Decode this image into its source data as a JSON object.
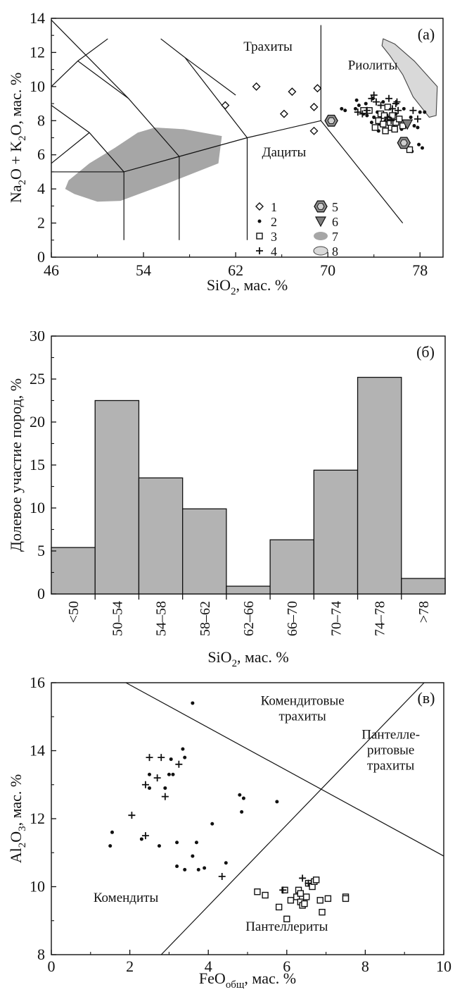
{
  "chart_data": [
    {
      "type": "scatter",
      "panel_label": "(а)",
      "xlabel": {
        "main": "SiO",
        "sub": "2",
        "rest": ", мас. %"
      },
      "ylabel": {
        "parts": [
          [
            "Na",
            ""
          ],
          [
            "2",
            "sub"
          ],
          [
            "O + K",
            ""
          ],
          [
            "2",
            "sub"
          ],
          [
            "O, мас. %",
            ""
          ]
        ]
      },
      "xlim": [
        46,
        80
      ],
      "ylim": [
        0,
        14
      ],
      "xticks": [
        46,
        54,
        62,
        70,
        78
      ],
      "yticks": [
        0,
        2,
        4,
        6,
        8,
        10,
        12,
        14
      ],
      "field_labels": [
        {
          "text": "Трахиты",
          "x": 64.8,
          "y": 12.1
        },
        {
          "text": "Риолиты",
          "x": 73.9,
          "y": 11.0
        },
        {
          "text": "Дациты",
          "x": 66.2,
          "y": 5.9
        }
      ],
      "boundaries": [
        [
          [
            46,
            5
          ],
          [
            52.3,
            5
          ],
          [
            57.1,
            5.9
          ],
          [
            63,
            7
          ],
          [
            69.4,
            8
          ]
        ],
        [
          [
            52.3,
            1
          ],
          [
            52.3,
            5
          ]
        ],
        [
          [
            57.1,
            1
          ],
          [
            57.1,
            5.9
          ]
        ],
        [
          [
            63,
            1
          ],
          [
            63,
            7
          ]
        ],
        [
          [
            69.4,
            8
          ],
          [
            76.5,
            2
          ]
        ],
        [
          [
            69.4,
            8
          ],
          [
            69.4,
            13.6
          ]
        ],
        [
          [
            63,
            7
          ],
          [
            57.6,
            11.7
          ],
          [
            55.5,
            12.8
          ]
        ],
        [
          [
            57.1,
            5.9
          ],
          [
            52.7,
            9.3
          ],
          [
            48.3,
            11.5
          ],
          [
            46,
            10
          ]
        ],
        [
          [
            52.3,
            5
          ],
          [
            49.3,
            7.3
          ],
          [
            46,
            8.9
          ]
        ],
        [
          [
            46,
            5.5
          ],
          [
            49.3,
            7.3
          ]
        ],
        [
          [
            52.7,
            9.3
          ],
          [
            46,
            13.9
          ]
        ],
        [
          [
            48.3,
            11.5
          ],
          [
            50.9,
            12.8
          ]
        ],
        [
          [
            57.6,
            11.7
          ],
          [
            62,
            9.5
          ]
        ]
      ],
      "areas": [
        {
          "name": "7",
          "fill": "#a6a6a6",
          "stroke": "none",
          "points": [
            [
              47.5,
              4.5
            ],
            [
              49.3,
              5.5
            ],
            [
              51.5,
              6.4
            ],
            [
              53.5,
              7.3
            ],
            [
              55,
              7.6
            ],
            [
              57.5,
              7.5
            ],
            [
              60.8,
              7.1
            ],
            [
              60.5,
              5.5
            ],
            [
              56,
              4.3
            ],
            [
              52,
              3.3
            ],
            [
              50,
              3.25
            ],
            [
              48,
              3.7
            ],
            [
              47.2,
              4.0
            ]
          ]
        },
        {
          "name": "8",
          "fill": "#d9d9d9",
          "stroke": "#444444",
          "points": [
            [
              74.8,
              12.8
            ],
            [
              75.8,
              12.5
            ],
            [
              77.5,
              11.5
            ],
            [
              79.5,
              10.0
            ],
            [
              79.4,
              8.3
            ],
            [
              78.8,
              8.2
            ],
            [
              77.4,
              9.4
            ],
            [
              76.5,
              10.7
            ],
            [
              75.4,
              11.8
            ],
            [
              74.7,
              12.4
            ]
          ]
        }
      ],
      "series": [
        {
          "name": "1",
          "marker": "diamond",
          "points": [
            [
              61.1,
              8.9
            ],
            [
              63.8,
              10.0
            ],
            [
              66.2,
              8.4
            ],
            [
              66.9,
              9.7
            ],
            [
              68.8,
              7.4
            ],
            [
              68.8,
              8.8
            ],
            [
              69.1,
              9.9
            ]
          ]
        },
        {
          "name": "2",
          "marker": "dot",
          "points": [
            [
              71.2,
              8.7
            ],
            [
              71.5,
              8.6
            ],
            [
              72.4,
              8.7
            ],
            [
              72.5,
              9.2
            ],
            [
              72.7,
              8.9
            ],
            [
              73.1,
              8.4
            ],
            [
              73.3,
              9.0
            ],
            [
              73.4,
              8.3
            ],
            [
              73.6,
              8.5
            ],
            [
              73.9,
              9.3
            ],
            [
              74.0,
              8.2
            ],
            [
              74.3,
              8.5
            ],
            [
              74.5,
              7.8
            ],
            [
              74.7,
              8.2
            ],
            [
              74.8,
              9.1
            ],
            [
              75.0,
              8.0
            ],
            [
              75.3,
              8.7
            ],
            [
              75.5,
              8.3
            ],
            [
              75.7,
              7.6
            ],
            [
              75.9,
              8.4
            ],
            [
              76.2,
              8.0
            ],
            [
              76.4,
              7.5
            ],
            [
              76.6,
              8.7
            ],
            [
              76.9,
              7.9
            ],
            [
              77.2,
              8.2
            ],
            [
              77.5,
              7.7
            ],
            [
              77.8,
              7.6
            ],
            [
              78.0,
              8.5
            ],
            [
              78.2,
              6.4
            ],
            [
              77.9,
              6.6
            ],
            [
              77.3,
              6.2
            ],
            [
              76.8,
              6.8
            ],
            [
              78.4,
              8.5
            ],
            [
              74.4,
              7.4
            ],
            [
              73.8,
              7.9
            ]
          ]
        },
        {
          "name": "3",
          "marker": "square",
          "points": [
            [
              73.1,
              8.6
            ],
            [
              73.6,
              8.6
            ],
            [
              74.1,
              7.6
            ],
            [
              74.4,
              8.0
            ],
            [
              74.6,
              8.4
            ],
            [
              74.8,
              7.8
            ],
            [
              75.0,
              7.4
            ],
            [
              75.3,
              8.1
            ],
            [
              75.5,
              7.6
            ],
            [
              75.8,
              7.5
            ],
            [
              75.6,
              8.3
            ],
            [
              75.2,
              8.8
            ],
            [
              75.9,
              7.9
            ],
            [
              76.2,
              8.1
            ],
            [
              76.5,
              7.7
            ],
            [
              77.1,
              6.3
            ],
            [
              74.9,
              8.3
            ],
            [
              75.4,
              7.9
            ]
          ]
        },
        {
          "name": "4",
          "marker": "plus",
          "points": [
            [
              72.6,
              8.5
            ],
            [
              73.0,
              8.4
            ],
            [
              73.4,
              8.6
            ],
            [
              73.8,
              9.3
            ],
            [
              74.0,
              9.5
            ],
            [
              74.2,
              9.1
            ],
            [
              74.6,
              8.9
            ],
            [
              75.2,
              8.2
            ],
            [
              75.3,
              9.3
            ],
            [
              75.6,
              8.7
            ],
            [
              75.9,
              9.0
            ],
            [
              76.0,
              9.1
            ],
            [
              77.4,
              8.6
            ],
            [
              77.8,
              8.1
            ],
            [
              75.5,
              8.0
            ],
            [
              76.1,
              8.6
            ]
          ]
        },
        {
          "name": "5",
          "marker": "hexagon",
          "points": [
            [
              70.3,
              8.0
            ],
            [
              76.6,
              6.7
            ]
          ]
        },
        {
          "name": "6",
          "marker": "triangle-down",
          "points": [
            [
              76.9,
              7.8
            ]
          ]
        }
      ],
      "legend": {
        "placement": "bottom-center",
        "entries": [
          {
            "label": "1",
            "marker": "diamond"
          },
          {
            "label": "2",
            "marker": "dot"
          },
          {
            "label": "3",
            "marker": "square"
          },
          {
            "label": "4",
            "marker": "plus"
          },
          {
            "label": "5",
            "marker": "hexagon"
          },
          {
            "label": "6",
            "marker": "triangle-down"
          },
          {
            "label": "7",
            "marker": "area-dark"
          },
          {
            "label": "8",
            "marker": "area-light"
          }
        ]
      }
    },
    {
      "type": "bar",
      "panel_label": "(б)",
      "categories": [
        "<50",
        "50–54",
        "54–58",
        "58–62",
        "62–66",
        "66–70",
        "70–74",
        "74–78",
        ">78"
      ],
      "values": [
        5.4,
        22.5,
        13.5,
        9.9,
        0.9,
        6.3,
        14.4,
        25.2,
        1.8
      ],
      "bar_color": "#b3b3b3",
      "xlabel": {
        "main": "SiO",
        "sub": "2",
        "rest": ", мас. %"
      },
      "ylabel": "Долевое участие пород, %",
      "ylim": [
        0,
        30
      ],
      "yticks": [
        0,
        5,
        10,
        15,
        20,
        25,
        30
      ]
    },
    {
      "type": "scatter",
      "panel_label": "(в)",
      "xlabel": {
        "main": "FeO",
        "sub": "общ",
        "rest": ", мас. %"
      },
      "ylabel": {
        "parts": [
          [
            "Al",
            ""
          ],
          [
            "2",
            "sub"
          ],
          [
            "O",
            ""
          ],
          [
            "3",
            "sub"
          ],
          [
            ", мас. %",
            ""
          ]
        ]
      },
      "xlim": [
        0,
        10
      ],
      "ylim": [
        8,
        16
      ],
      "xticks": [
        0,
        2,
        4,
        6,
        8,
        10
      ],
      "yticks": [
        8,
        10,
        12,
        14,
        16
      ],
      "field_labels": [
        {
          "lines": [
            "Комендитовые",
            "трахиты"
          ],
          "x": 6.4,
          "y": 15.35
        },
        {
          "lines": [
            "Пантелле-",
            "ритовые",
            "трахиты"
          ],
          "x": 8.65,
          "y": 14.35
        },
        {
          "lines": [
            "Комендиты"
          ],
          "x": 1.9,
          "y": 9.55
        },
        {
          "lines": [
            "Пантеллериты"
          ],
          "x": 6.0,
          "y": 8.7
        }
      ],
      "boundaries": [
        [
          [
            1.9,
            16
          ],
          [
            10,
            10.9
          ]
        ],
        [
          [
            2.8,
            8
          ],
          [
            9.5,
            16
          ]
        ]
      ],
      "series": [
        {
          "name": "2",
          "marker": "dot",
          "points": [
            [
              3.6,
              15.4
            ],
            [
              1.5,
              11.2
            ],
            [
              1.55,
              11.6
            ],
            [
              2.3,
              11.4
            ],
            [
              2.5,
              13.3
            ],
            [
              2.5,
              12.9
            ],
            [
              2.75,
              11.2
            ],
            [
              2.9,
              12.9
            ],
            [
              3.0,
              13.3
            ],
            [
              3.05,
              13.75
            ],
            [
              3.1,
              13.3
            ],
            [
              3.2,
              11.3
            ],
            [
              3.2,
              10.6
            ],
            [
              3.35,
              14.05
            ],
            [
              3.4,
              13.8
            ],
            [
              3.4,
              10.5
            ],
            [
              3.6,
              10.9
            ],
            [
              3.7,
              11.3
            ],
            [
              3.75,
              10.5
            ],
            [
              3.9,
              10.55
            ],
            [
              4.1,
              11.85
            ],
            [
              4.45,
              10.7
            ],
            [
              4.8,
              12.7
            ],
            [
              4.9,
              12.6
            ],
            [
              4.85,
              12.2
            ],
            [
              5.75,
              12.5
            ]
          ]
        },
        {
          "name": "3",
          "marker": "square",
          "points": [
            [
              5.25,
              9.85
            ],
            [
              5.45,
              9.75
            ],
            [
              5.8,
              9.4
            ],
            [
              5.95,
              9.9
            ],
            [
              6.0,
              9.05
            ],
            [
              6.1,
              9.6
            ],
            [
              6.25,
              9.7
            ],
            [
              6.3,
              9.9
            ],
            [
              6.35,
              9.55
            ],
            [
              6.4,
              9.45
            ],
            [
              6.45,
              9.5
            ],
            [
              6.5,
              9.7
            ],
            [
              6.55,
              10.1
            ],
            [
              6.65,
              10.0
            ],
            [
              6.7,
              10.15
            ],
            [
              6.75,
              10.2
            ],
            [
              6.85,
              9.6
            ],
            [
              6.9,
              9.25
            ],
            [
              7.05,
              9.65
            ],
            [
              7.5,
              9.7
            ],
            [
              7.5,
              9.65
            ],
            [
              6.35,
              9.8
            ]
          ]
        },
        {
          "name": "4",
          "marker": "plus",
          "points": [
            [
              2.5,
              13.8
            ],
            [
              2.8,
              13.8
            ],
            [
              3.25,
              13.6
            ],
            [
              2.7,
              13.2
            ],
            [
              2.4,
              13.0
            ],
            [
              2.9,
              12.65
            ],
            [
              2.05,
              12.1
            ],
            [
              2.4,
              11.5
            ],
            [
              4.35,
              10.3
            ],
            [
              5.9,
              9.9
            ],
            [
              6.4,
              10.25
            ],
            [
              6.55,
              10.1
            ]
          ]
        }
      ]
    }
  ]
}
